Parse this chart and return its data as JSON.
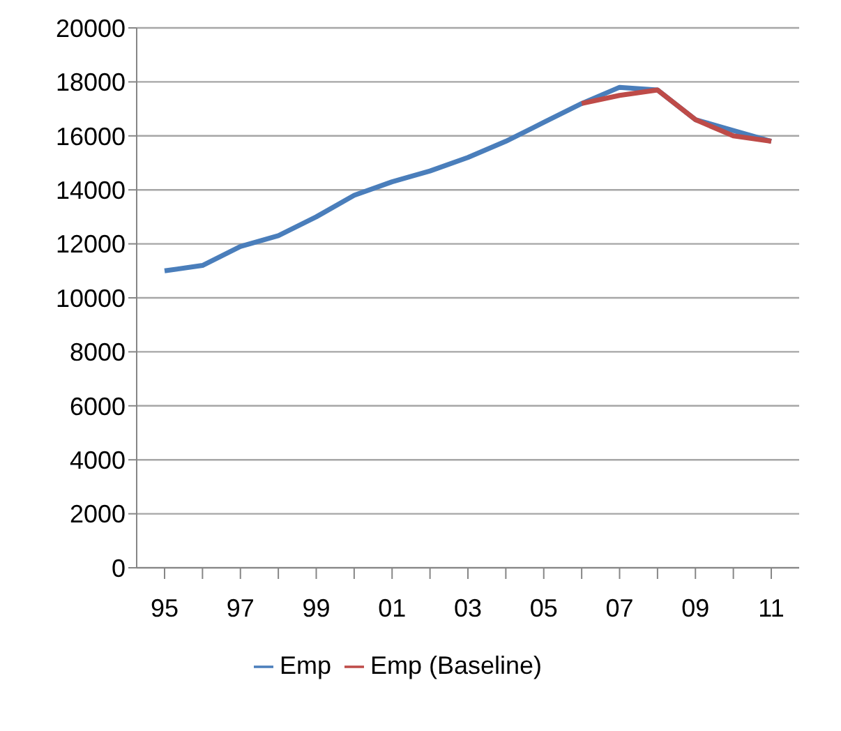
{
  "chart_data": {
    "type": "line",
    "categories": [
      "95",
      null,
      "97",
      null,
      "99",
      null,
      "01",
      null,
      "03",
      null,
      "05",
      null,
      "07",
      null,
      "09",
      null,
      "11"
    ],
    "series": [
      {
        "name": "Emp",
        "color": "#4a7ebb",
        "values": [
          11000,
          11200,
          11900,
          12300,
          13000,
          13800,
          14300,
          14700,
          15200,
          15800,
          16500,
          17200,
          17800,
          17700,
          16600,
          16200,
          15800
        ]
      },
      {
        "name": "Emp (Baseline)",
        "color": "#be4b48",
        "values": [
          null,
          null,
          null,
          null,
          null,
          null,
          null,
          null,
          null,
          null,
          null,
          17200,
          17500,
          17700,
          16600,
          16000,
          15800
        ]
      }
    ],
    "ylim": [
      0,
      20000
    ],
    "yticks": [
      0,
      2000,
      4000,
      6000,
      8000,
      10000,
      12000,
      14000,
      16000,
      18000,
      20000
    ],
    "grid": "y",
    "legend": "bottom",
    "marker": "none",
    "line_style": "solid"
  }
}
